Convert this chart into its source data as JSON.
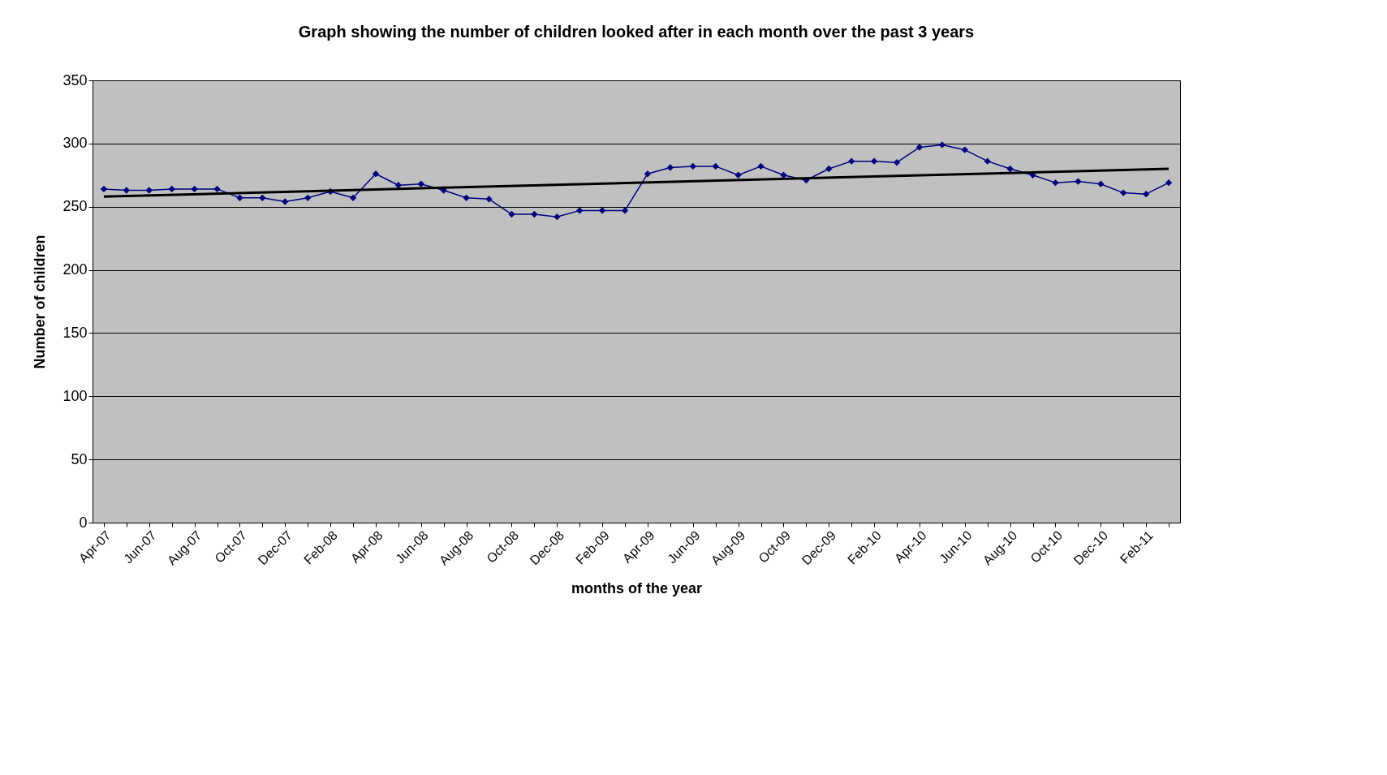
{
  "chart_data": {
    "type": "line",
    "title": "Graph showing the number of children looked after in each month over the past 3 years",
    "xlabel": "months of the year",
    "ylabel": "Number of children",
    "categories": [
      "Apr-07",
      null,
      "Jun-07",
      null,
      "Aug-07",
      null,
      "Oct-07",
      null,
      "Dec-07",
      null,
      "Feb-08",
      null,
      "Apr-08",
      null,
      "Jun-08",
      null,
      "Aug-08",
      null,
      "Oct-08",
      null,
      "Dec-08",
      null,
      "Feb-09",
      null,
      "Apr-09",
      null,
      "Jun-09",
      null,
      "Aug-09",
      null,
      "Oct-09",
      null,
      "Dec-09",
      null,
      "Feb-10",
      null,
      "Apr-10",
      null,
      "Jun-10",
      null,
      "Aug-10",
      null,
      "Oct-10",
      null,
      "Dec-10",
      null,
      "Feb-11",
      null
    ],
    "series": [
      {
        "color": "#000080",
        "marker": "diamond",
        "values": [
          264,
          263,
          263,
          264,
          264,
          264,
          257,
          257,
          254,
          257,
          262,
          257,
          276,
          267,
          268,
          263,
          257,
          256,
          244,
          244,
          242,
          247,
          247,
          247,
          276,
          281,
          282,
          282,
          275,
          282,
          275,
          271,
          280,
          286,
          286,
          285,
          297,
          299,
          295,
          286,
          280,
          275,
          269,
          270,
          268,
          261,
          260,
          269
        ]
      },
      {
        "color": "#000000",
        "marker": "none",
        "values": [
          258,
          null,
          null,
          null,
          null,
          null,
          null,
          null,
          null,
          null,
          null,
          null,
          null,
          null,
          null,
          null,
          null,
          null,
          null,
          null,
          null,
          null,
          null,
          null,
          null,
          null,
          null,
          null,
          null,
          null,
          null,
          null,
          null,
          null,
          null,
          null,
          null,
          null,
          null,
          null,
          null,
          null,
          null,
          null,
          null,
          null,
          null,
          280
        ]
      }
    ],
    "ylim": [
      0,
      350
    ],
    "yticks": [
      0,
      50,
      100,
      150,
      200,
      250,
      300,
      350
    ],
    "grid": "y"
  }
}
